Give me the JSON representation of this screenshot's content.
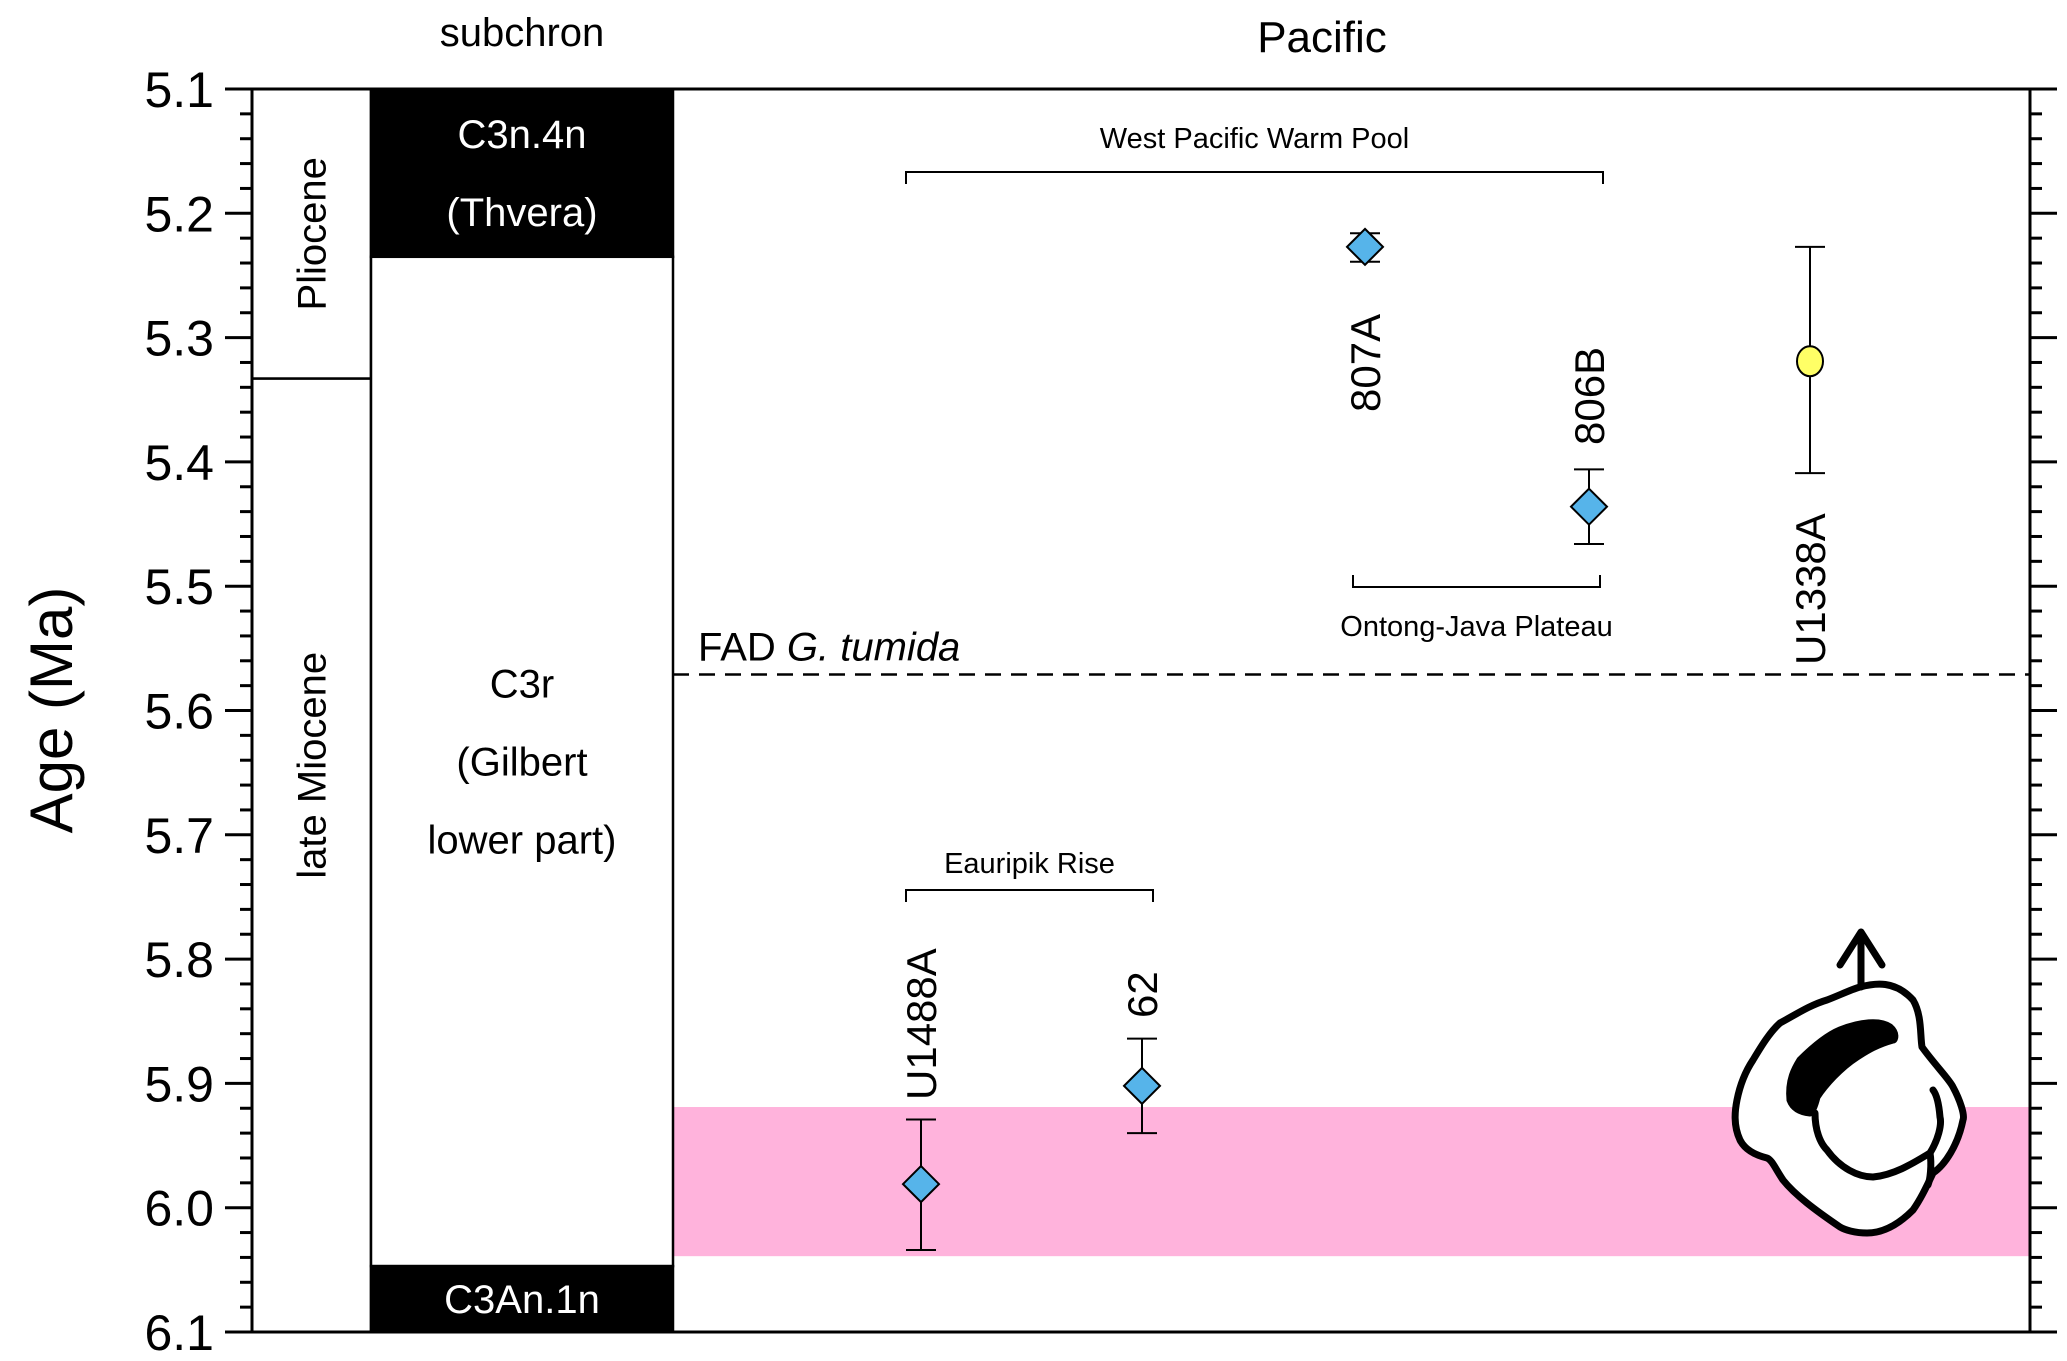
{
  "chart_data": {
    "type": "scatter",
    "title": "Pacific",
    "ylabel": "Age (Ma)",
    "ylim": [
      5.1,
      6.1
    ],
    "y_inverted": true,
    "y_ticks": [
      "5.1",
      "5.2",
      "5.3",
      "5.4",
      "5.5",
      "5.6",
      "5.7",
      "5.8",
      "5.9",
      "6.0",
      "6.1"
    ],
    "y_minor_step": 0.02,
    "grid": false,
    "epoch_column": [
      {
        "label": "Pliocene",
        "from": 5.1,
        "to": 5.333
      },
      {
        "label": "late Miocene",
        "from": 5.333,
        "to": 6.1
      }
    ],
    "subchron_title": "subchron",
    "subchrons": [
      {
        "lines": [
          "C3n.4n",
          "(Thvera)"
        ],
        "from": 5.1,
        "to": 5.235,
        "polarity": "normal"
      },
      {
        "lines": [
          "C3r",
          "(Gilbert",
          "lower part)"
        ],
        "from": 5.235,
        "to": 6.047,
        "polarity": "reversed"
      },
      {
        "lines": [
          "C3An.1n"
        ],
        "from": 6.047,
        "to": 6.1,
        "polarity": "normal"
      }
    ],
    "points": [
      {
        "site": "807A",
        "age": 5.227,
        "err_low": 5.216,
        "err_high": 5.239,
        "marker": "diamond",
        "color": "#56b4ea"
      },
      {
        "site": "806B",
        "age": 5.436,
        "err_low": 5.406,
        "err_high": 5.466,
        "marker": "diamond",
        "color": "#56b4ea"
      },
      {
        "site": "U1338A",
        "age": 5.319,
        "err_low": 5.227,
        "err_high": 5.409,
        "marker": "circle",
        "color": "#ffff66"
      },
      {
        "site": "U1488A",
        "age": 5.981,
        "err_low": 5.929,
        "err_high": 6.034,
        "marker": "diamond",
        "color": "#56b4ea"
      },
      {
        "site": "62",
        "age": 5.902,
        "err_low": 5.864,
        "err_high": 5.94,
        "marker": "diamond",
        "color": "#56b4ea"
      }
    ],
    "groups": [
      {
        "label": "West Pacific Warm Pool",
        "sites": [
          "807A",
          "806B"
        ]
      },
      {
        "label": "Ontong-Java Plateau",
        "sites": [
          "807A",
          "806B"
        ]
      },
      {
        "label": "Eauripik Rise",
        "sites": [
          "U1488A",
          "62"
        ]
      }
    ],
    "reference_line": {
      "age": 5.571,
      "label_prefix": "FAD ",
      "label_italic": "G. tumida",
      "style": "dashed"
    },
    "highlight_band": {
      "from": 5.919,
      "to": 6.039,
      "color": "#ffb3dc"
    },
    "icon": "foraminifera-arrow-up"
  }
}
